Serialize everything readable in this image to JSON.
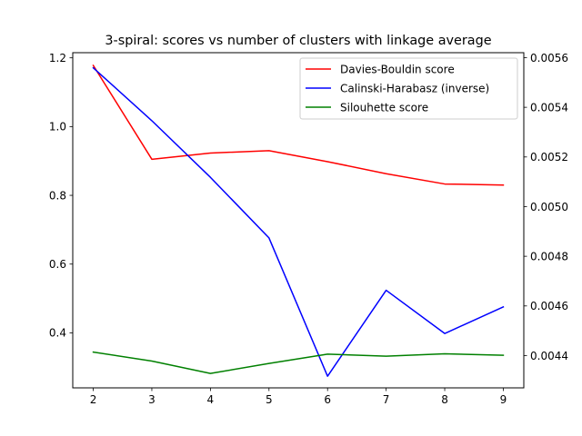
{
  "chart_data": {
    "type": "line",
    "title": "3-spiral: scores vs number of clusters with linkage average",
    "xlabel": "",
    "ylabel": "",
    "x": [
      2,
      3,
      4,
      5,
      6,
      7,
      8,
      9
    ],
    "xlim": [
      1.65,
      9.35
    ],
    "ylim_left": [
      0.24,
      1.215
    ],
    "ylim_right": [
      0.00427,
      0.00562
    ],
    "left_ticks": [
      "0.4",
      "0.6",
      "0.8",
      "1.0",
      "1.2"
    ],
    "right_ticks": [
      "0.0044",
      "0.0046",
      "0.0048",
      "0.0050",
      "0.0052",
      "0.0054",
      "0.0056"
    ],
    "legend_position": "upper-right",
    "grid": false,
    "series": [
      {
        "name": "Davies-Bouldin score",
        "color": "#ff0000",
        "axis": "left",
        "values": [
          1.178,
          0.905,
          0.923,
          0.93,
          0.898,
          0.863,
          0.833,
          0.83
        ]
      },
      {
        "name": "Calinski-Harabasz (inverse)",
        "color": "#0000ff",
        "axis": "right",
        "values": [
          0.005559,
          0.005346,
          0.005118,
          0.004874,
          0.004317,
          0.004663,
          0.004489,
          0.004596
        ]
      },
      {
        "name": "Silouhette score",
        "color": "#008000",
        "axis": "left",
        "values": [
          0.344,
          0.318,
          0.282,
          0.311,
          0.338,
          0.332,
          0.339,
          0.335
        ]
      }
    ]
  }
}
